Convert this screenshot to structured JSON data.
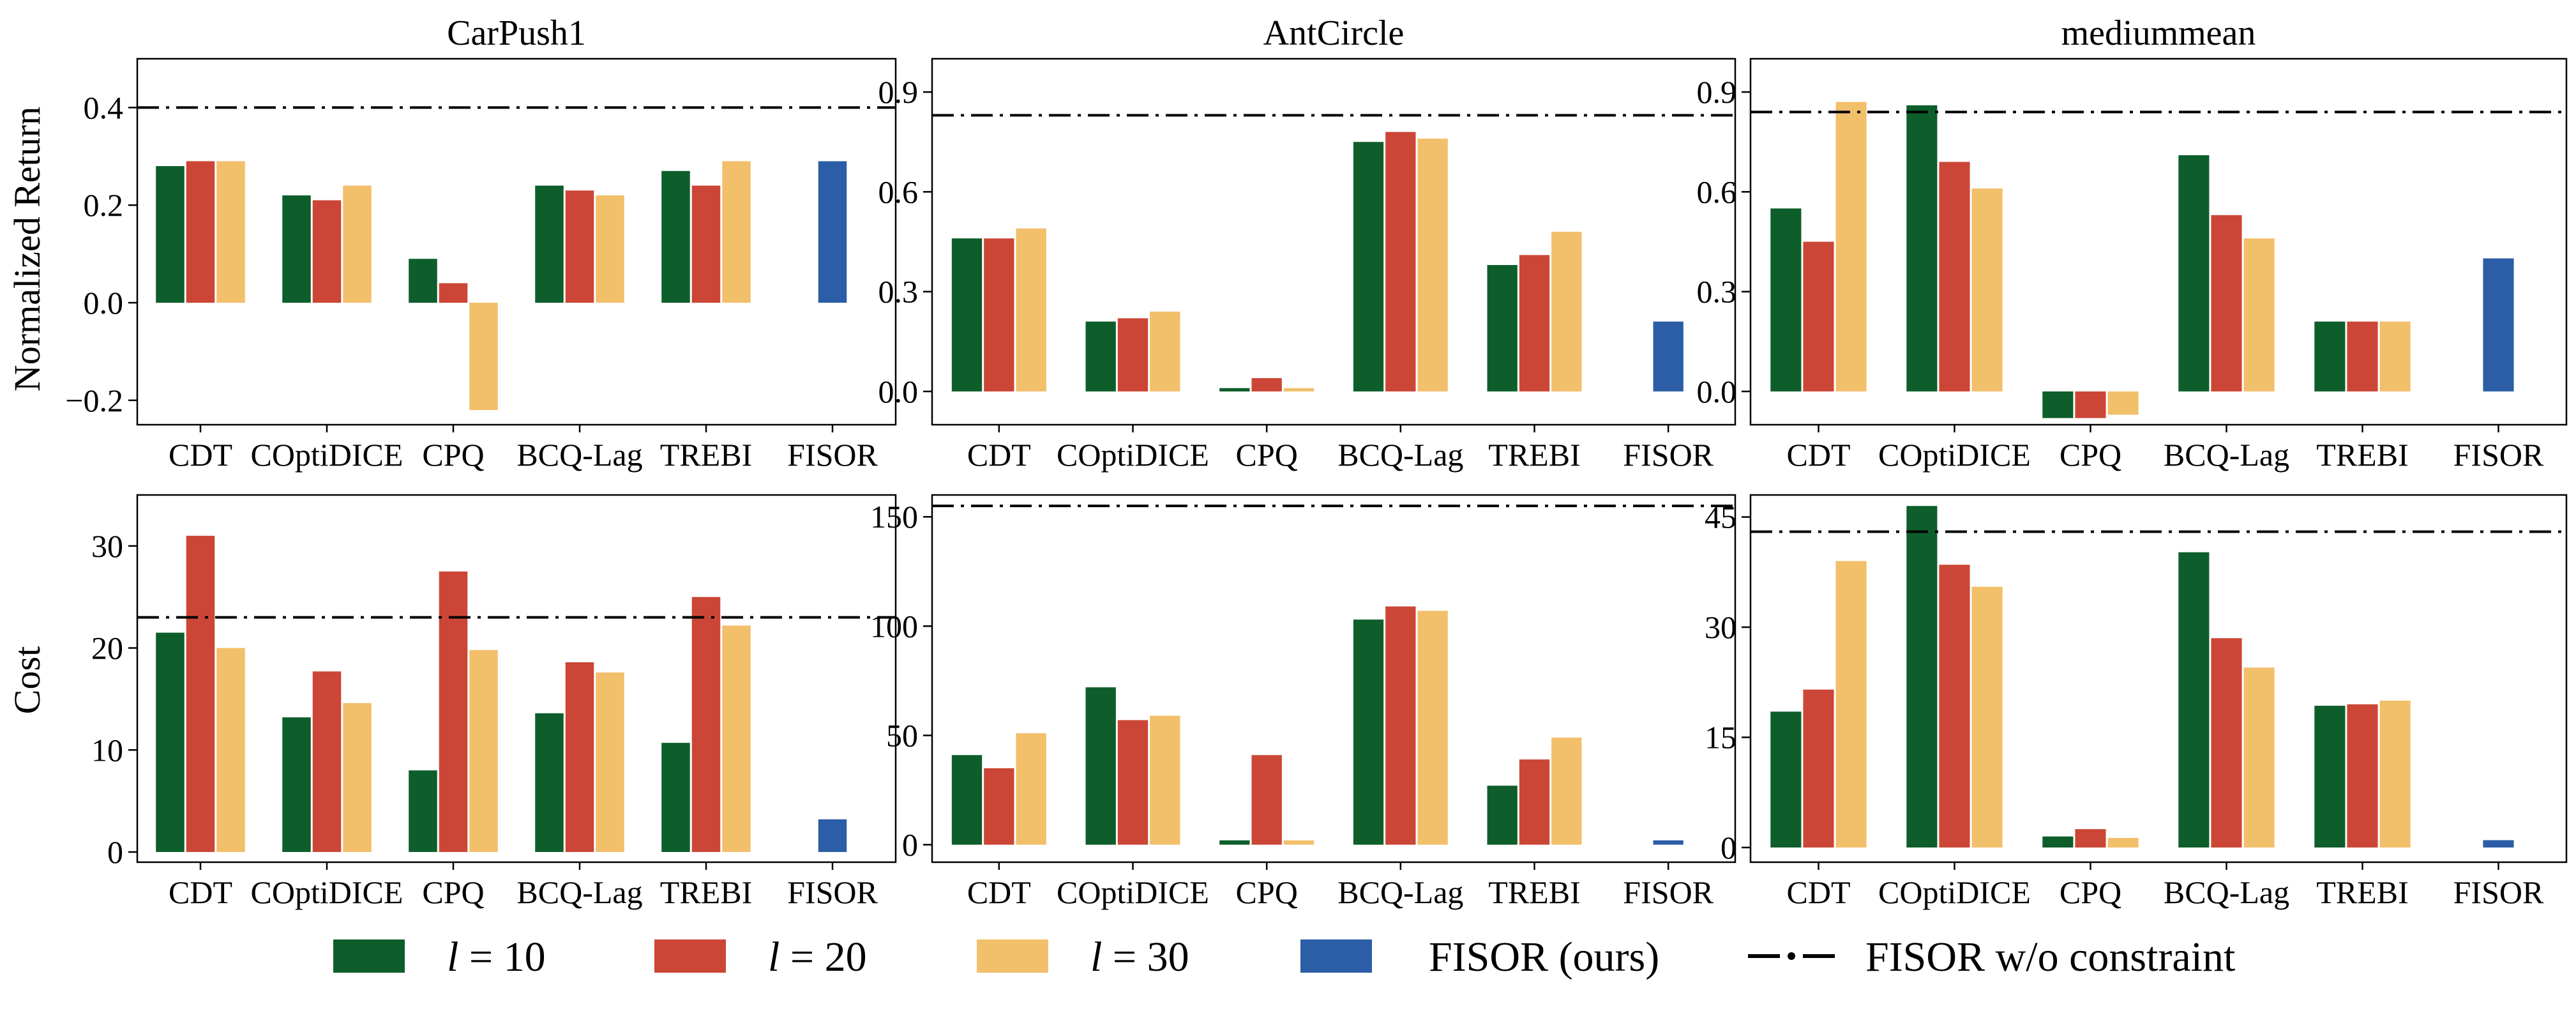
{
  "figure": {
    "row_labels": [
      "Normalized Return",
      "Cost"
    ],
    "legend": [
      {
        "prefix": "l",
        "suffix": " = 10",
        "color": "#0d5e2b"
      },
      {
        "prefix": "l",
        "suffix": " = 20",
        "color": "#cb4636"
      },
      {
        "prefix": "l",
        "suffix": " = 30",
        "color": "#f2bf6b"
      },
      {
        "prefix": "",
        "suffix": "FISOR (ours)",
        "color": "#2b5ea6"
      },
      {
        "prefix": "",
        "suffix": "FISOR w/o constraint",
        "color": "#000000",
        "style": "dash-dot"
      }
    ],
    "colors": {
      "l10": "#0d5e2b",
      "l20": "#cb4636",
      "l30": "#f2bf6b",
      "fisor": "#2b5ea6"
    }
  },
  "chart_data": [
    {
      "type": "bar",
      "title": "CarPush1",
      "ylabel": "Normalized Return",
      "categories": [
        "CDT",
        "COptiDICE",
        "CPQ",
        "BCQ-Lag",
        "TREBI",
        "FISOR"
      ],
      "series": [
        {
          "name": "l = 10",
          "values": [
            0.28,
            0.22,
            0.09,
            0.24,
            0.27,
            null
          ]
        },
        {
          "name": "l = 20",
          "values": [
            0.29,
            0.21,
            0.04,
            0.23,
            0.24,
            null
          ]
        },
        {
          "name": "l = 30",
          "values": [
            0.29,
            0.24,
            -0.22,
            0.22,
            0.29,
            null
          ]
        },
        {
          "name": "FISOR (ours)",
          "values": [
            null,
            null,
            null,
            null,
            null,
            0.29
          ]
        }
      ],
      "reference_line": {
        "name": "FISOR w/o constraint",
        "value": 0.4
      },
      "ylim": [
        -0.25,
        0.5
      ],
      "yticks": [
        -0.2,
        0.0,
        0.2,
        0.4
      ],
      "ytick_labels": [
        "−0.2",
        "0.0",
        "0.2",
        "0.4"
      ]
    },
    {
      "type": "bar",
      "title": "AntCircle",
      "ylabel": "",
      "categories": [
        "CDT",
        "COptiDICE",
        "CPQ",
        "BCQ-Lag",
        "TREBI",
        "FISOR"
      ],
      "series": [
        {
          "name": "l = 10",
          "values": [
            0.46,
            0.21,
            0.01,
            0.75,
            0.38,
            null
          ]
        },
        {
          "name": "l = 20",
          "values": [
            0.46,
            0.22,
            0.04,
            0.78,
            0.41,
            null
          ]
        },
        {
          "name": "l = 30",
          "values": [
            0.49,
            0.24,
            0.01,
            0.76,
            0.48,
            null
          ]
        },
        {
          "name": "FISOR (ours)",
          "values": [
            null,
            null,
            null,
            null,
            null,
            0.21
          ]
        }
      ],
      "reference_line": {
        "name": "FISOR w/o constraint",
        "value": 0.83
      },
      "ylim": [
        -0.1,
        1.0
      ],
      "yticks": [
        0.0,
        0.3,
        0.6,
        0.9
      ],
      "ytick_labels": [
        "0.0",
        "0.3",
        "0.6",
        "0.9"
      ]
    },
    {
      "type": "bar",
      "title": "mediummean",
      "ylabel": "",
      "categories": [
        "CDT",
        "COptiDICE",
        "CPQ",
        "BCQ-Lag",
        "TREBI",
        "FISOR"
      ],
      "series": [
        {
          "name": "l = 10",
          "values": [
            0.55,
            0.86,
            -0.08,
            0.71,
            0.21,
            null
          ]
        },
        {
          "name": "l = 20",
          "values": [
            0.45,
            0.69,
            -0.08,
            0.53,
            0.21,
            null
          ]
        },
        {
          "name": "l = 30",
          "values": [
            0.87,
            0.61,
            -0.07,
            0.46,
            0.21,
            null
          ]
        },
        {
          "name": "FISOR (ours)",
          "values": [
            null,
            null,
            null,
            null,
            null,
            0.4
          ]
        }
      ],
      "reference_line": {
        "name": "FISOR w/o constraint",
        "value": 0.84
      },
      "ylim": [
        -0.1,
        1.0
      ],
      "yticks": [
        0.0,
        0.3,
        0.6,
        0.9
      ],
      "ytick_labels": [
        "0.0",
        "0.3",
        "0.6",
        "0.9"
      ]
    },
    {
      "type": "bar",
      "title": "",
      "ylabel": "Cost",
      "categories": [
        "CDT",
        "COptiDICE",
        "CPQ",
        "BCQ-Lag",
        "TREBI",
        "FISOR"
      ],
      "series": [
        {
          "name": "l = 10",
          "values": [
            21.5,
            13.2,
            8.0,
            13.6,
            10.7,
            null
          ]
        },
        {
          "name": "l = 20",
          "values": [
            31.0,
            17.7,
            27.5,
            18.6,
            25.0,
            null
          ]
        },
        {
          "name": "l = 30",
          "values": [
            20.0,
            14.6,
            19.8,
            17.6,
            22.2,
            null
          ]
        },
        {
          "name": "FISOR (ours)",
          "values": [
            null,
            null,
            null,
            null,
            null,
            3.2
          ]
        }
      ],
      "reference_line": {
        "name": "FISOR w/o constraint",
        "value": 23.0
      },
      "ylim": [
        -1,
        35
      ],
      "yticks": [
        0,
        10,
        20,
        30
      ],
      "ytick_labels": [
        "0",
        "10",
        "20",
        "30"
      ]
    },
    {
      "type": "bar",
      "title": "",
      "ylabel": "",
      "categories": [
        "CDT",
        "COptiDICE",
        "CPQ",
        "BCQ-Lag",
        "TREBI",
        "FISOR"
      ],
      "series": [
        {
          "name": "l = 10",
          "values": [
            41,
            72,
            2,
            103,
            27,
            null
          ]
        },
        {
          "name": "l = 20",
          "values": [
            35,
            57,
            41,
            109,
            39,
            null
          ]
        },
        {
          "name": "l = 30",
          "values": [
            51,
            59,
            2,
            107,
            49,
            null
          ]
        },
        {
          "name": "FISOR (ours)",
          "values": [
            null,
            null,
            null,
            null,
            null,
            2
          ]
        }
      ],
      "reference_line": {
        "name": "FISOR w/o constraint",
        "value": 155
      },
      "ylim": [
        -8,
        160
      ],
      "yticks": [
        0,
        50,
        100,
        150
      ],
      "ytick_labels": [
        "0",
        "50",
        "100",
        "150"
      ]
    },
    {
      "type": "bar",
      "title": "",
      "ylabel": "",
      "categories": [
        "CDT",
        "COptiDICE",
        "CPQ",
        "BCQ-Lag",
        "TREBI",
        "FISOR"
      ],
      "series": [
        {
          "name": "l = 10",
          "values": [
            18.5,
            46.5,
            1.5,
            40.2,
            19.3,
            null
          ]
        },
        {
          "name": "l = 20",
          "values": [
            21.5,
            38.5,
            2.5,
            28.5,
            19.5,
            null
          ]
        },
        {
          "name": "l = 30",
          "values": [
            39.0,
            35.5,
            1.3,
            24.5,
            20.0,
            null
          ]
        },
        {
          "name": "FISOR (ours)",
          "values": [
            null,
            null,
            null,
            null,
            null,
            1.0
          ]
        }
      ],
      "reference_line": {
        "name": "FISOR w/o constraint",
        "value": 43.0
      },
      "ylim": [
        -2,
        48
      ],
      "yticks": [
        0,
        15,
        30,
        45
      ],
      "ytick_labels": [
        "0",
        "15",
        "30",
        "45"
      ]
    }
  ]
}
